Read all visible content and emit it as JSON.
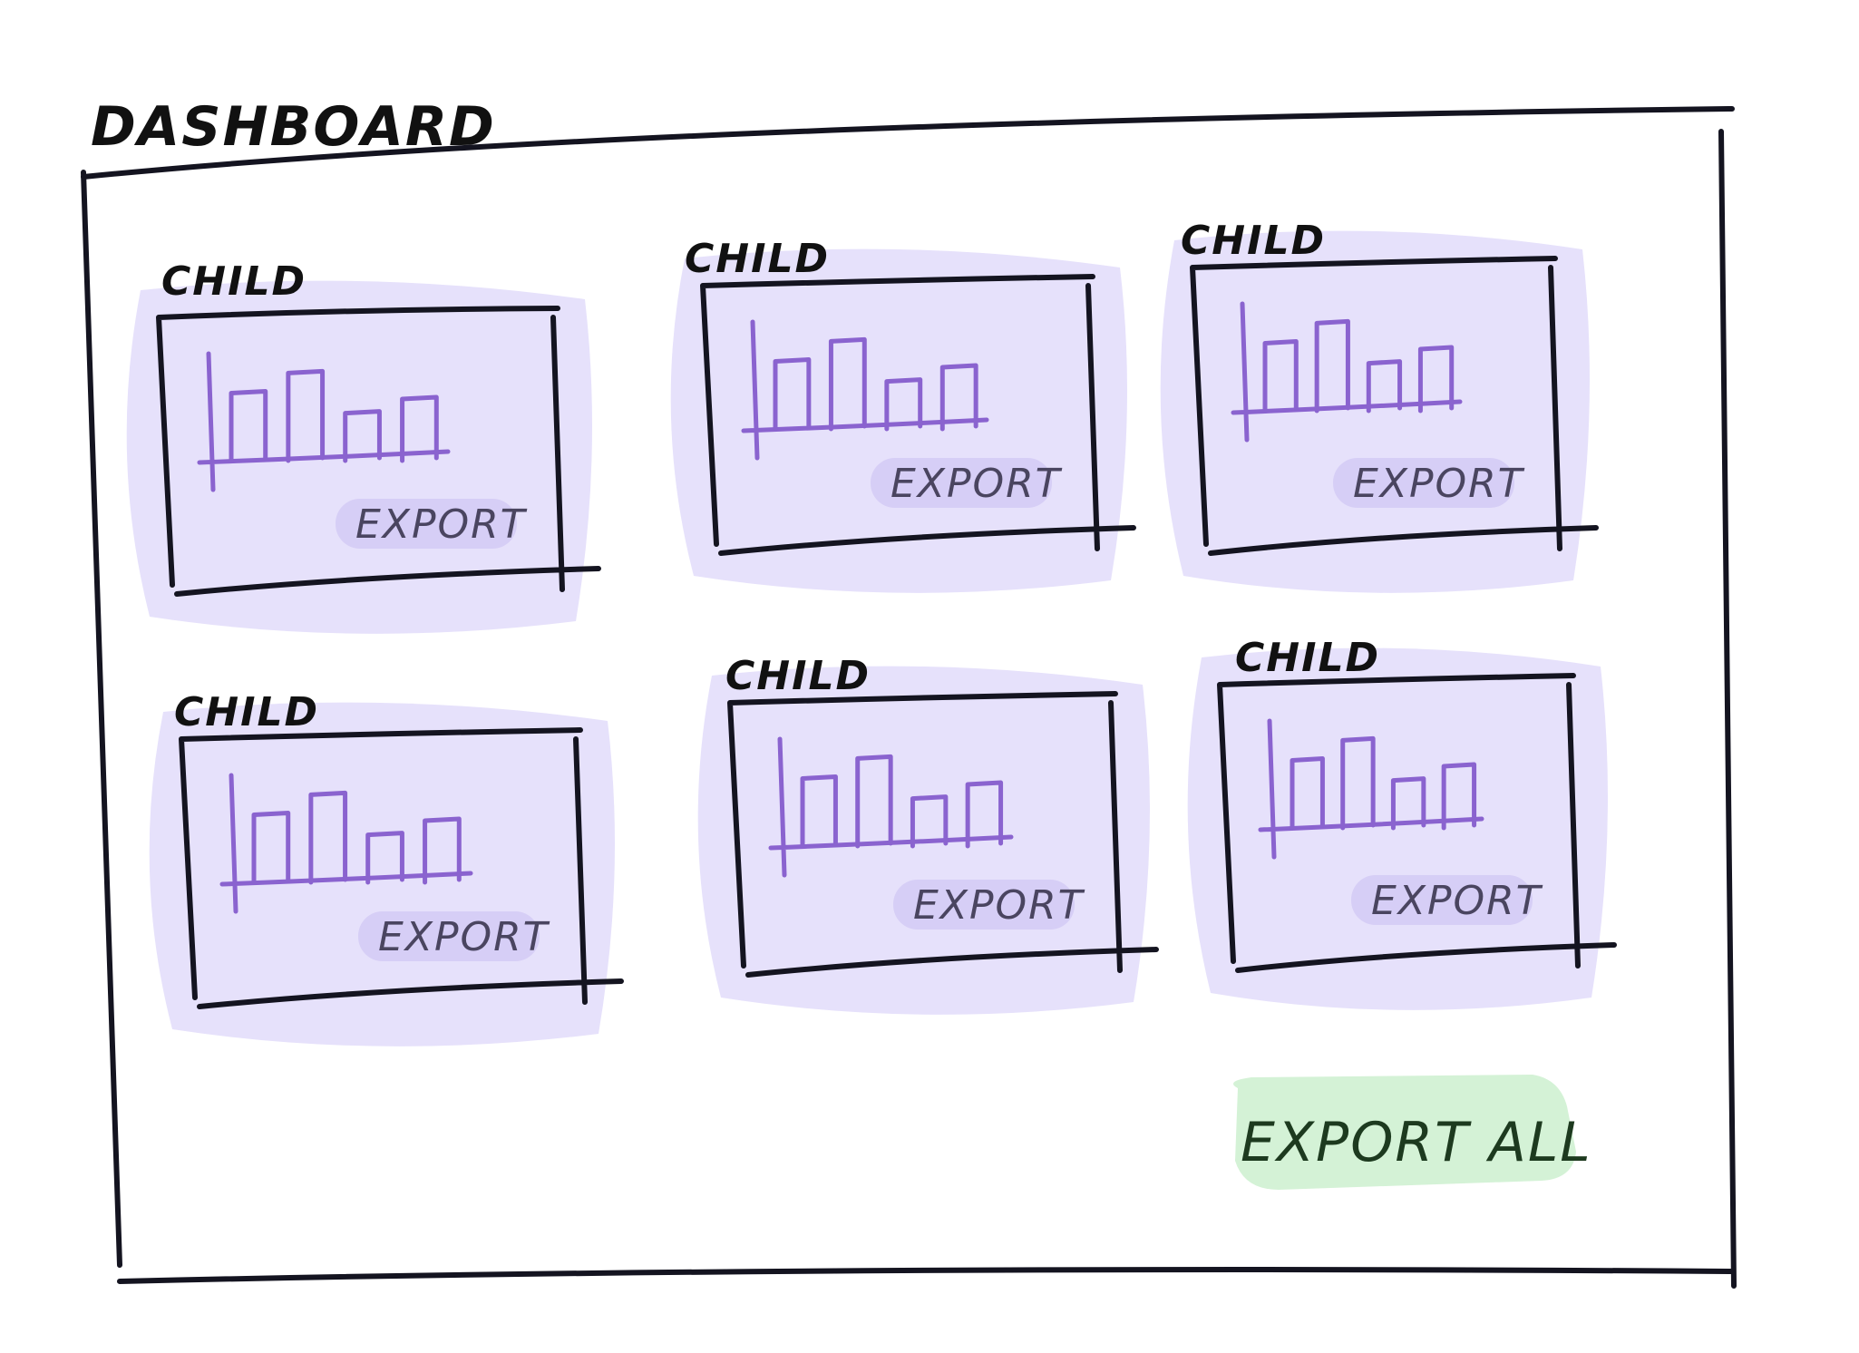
{
  "dashboard": {
    "title": "DASHBOARD",
    "export_all_label": "EXPORT ALL",
    "colors": {
      "ink": "#141420",
      "card_fill": "#e6e1fb",
      "chart_stroke": "#8a63cf",
      "export_pill": "#d6cef6",
      "export_all_fill": "#d4f2d6"
    },
    "children": [
      {
        "label": "CHILD",
        "export_label": "EXPORT"
      },
      {
        "label": "CHILD",
        "export_label": "EXPORT"
      },
      {
        "label": "CHILD",
        "export_label": "EXPORT"
      },
      {
        "label": "CHILD",
        "export_label": "EXPORT"
      },
      {
        "label": "CHILD",
        "export_label": "EXPORT"
      },
      {
        "label": "CHILD",
        "export_label": "EXPORT"
      }
    ]
  }
}
